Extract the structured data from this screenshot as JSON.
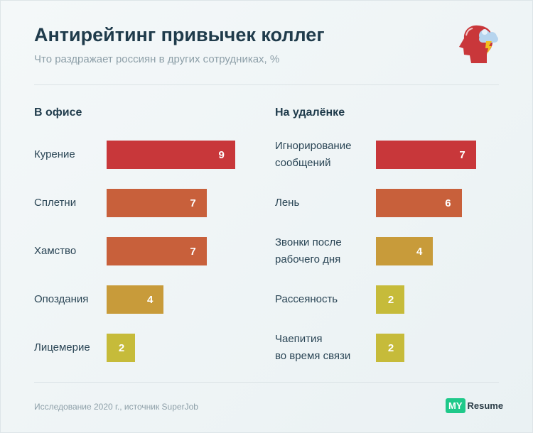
{
  "header": {
    "title": "Антирейтинг привычек коллег",
    "subtitle": "Что раздражает россиян в других сотрудниках, %",
    "icon": "head-storm-icon"
  },
  "footer": {
    "source": "Исследование 2020 г., источник SuperJob",
    "logo_my": "MY",
    "logo_resume": "Resume"
  },
  "chart_data": [
    {
      "type": "bar",
      "orientation": "horizontal",
      "title": "В офисе",
      "categories": [
        "Курение",
        "Сплетни",
        "Хамство",
        "Опоздания",
        "Лицемерие"
      ],
      "values": [
        9,
        7,
        7,
        4,
        2
      ],
      "colors": [
        "#c8373a",
        "#c8603b",
        "#c8603b",
        "#c89b3a",
        "#c6bb3a"
      ]
    },
    {
      "type": "bar",
      "orientation": "horizontal",
      "title": "На удалёнке",
      "categories": [
        "Игнорирование\nсообщений",
        "Лень",
        "Звонки после\nрабочего дня",
        "Рассеяность",
        "Чаепития\nво время связи"
      ],
      "values": [
        7,
        6,
        4,
        2,
        2
      ],
      "colors": [
        "#c8373a",
        "#c8603b",
        "#c89b3a",
        "#c6bb3a",
        "#c6bb3a"
      ]
    }
  ]
}
